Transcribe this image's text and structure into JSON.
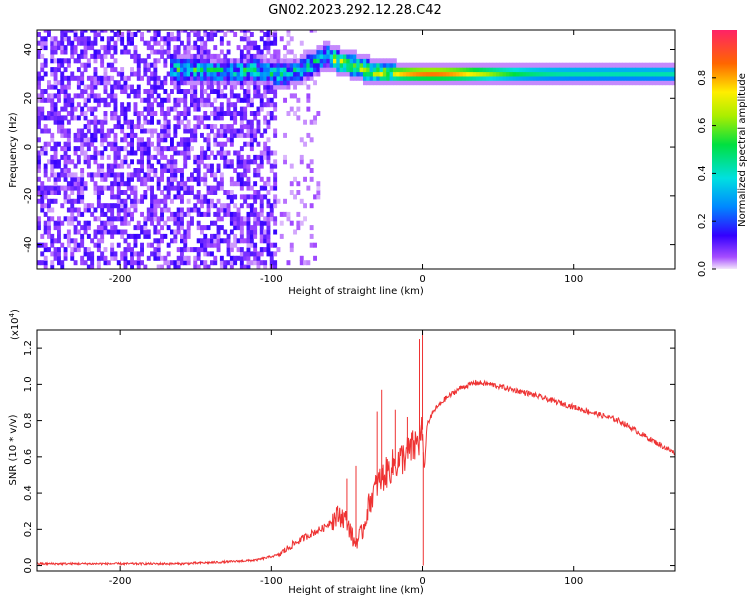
{
  "title": "GN02.2023.292.12.28.C42",
  "chart_data": [
    {
      "type": "heatmap",
      "xlabel": "Height of straight line (km)",
      "ylabel": "Frequency (Hz)",
      "xlim": [
        -255,
        167
      ],
      "ylim": [
        -50,
        48
      ],
      "xticks": [
        -200,
        -100,
        0,
        100
      ],
      "yticks": [
        40,
        20,
        0,
        -20,
        -40
      ],
      "colorbar": {
        "label": "Normalized spectral amplitude",
        "range": [
          0,
          1
        ],
        "ticks": [
          "0.0",
          "0.2",
          "0.4",
          "0.6",
          "0.8"
        ]
      },
      "ridge": [
        {
          "x": -165,
          "y": 31
        },
        {
          "x": -150,
          "y": 31
        },
        {
          "x": -130,
          "y": 30
        },
        {
          "x": -110,
          "y": 31
        },
        {
          "x": -95,
          "y": 29
        },
        {
          "x": -85,
          "y": 30
        },
        {
          "x": -75,
          "y": 33
        },
        {
          "x": -65,
          "y": 37
        },
        {
          "x": -55,
          "y": 34
        },
        {
          "x": -48,
          "y": 33
        },
        {
          "x": -40,
          "y": 31
        },
        {
          "x": -30,
          "y": 30
        },
        {
          "x": -15,
          "y": 29.5
        },
        {
          "x": 0,
          "y": 29.5
        },
        {
          "x": 100,
          "y": 29.5
        },
        {
          "x": 167,
          "y": 29.5
        }
      ]
    },
    {
      "type": "line",
      "xlabel": "Height of straight line (km)",
      "ylabel": "SNR (10 * v/v)",
      "multiplier": "(x10",
      "multiplier_exp": "4",
      "multiplier_close": ")",
      "xlim": [
        -255,
        167
      ],
      "ylim": [
        -0.03,
        1.3
      ],
      "xticks": [
        -200,
        -100,
        0,
        100
      ],
      "yticks": [
        "0.0",
        "0.2",
        "0.4",
        "0.6",
        "0.8",
        "1.0",
        "1.2"
      ],
      "color": "#ee3333",
      "series": [
        {
          "x": [
            -255,
            -200,
            -160,
            -130,
            -110,
            -95,
            -85,
            -75,
            -65,
            -60,
            -55,
            -50,
            -45,
            -40,
            -35,
            -30,
            -25,
            -20,
            -15,
            -10,
            -5,
            -2,
            0,
            1,
            3,
            8,
            15,
            25,
            35,
            45,
            55,
            70,
            90,
            110,
            130,
            150,
            167
          ],
          "values": [
            0.01,
            0.01,
            0.01,
            0.02,
            0.03,
            0.06,
            0.12,
            0.17,
            0.21,
            0.25,
            0.28,
            0.25,
            0.12,
            0.18,
            0.35,
            0.45,
            0.5,
            0.55,
            0.58,
            0.62,
            0.66,
            0.7,
            0.75,
            0.5,
            0.78,
            0.86,
            0.92,
            0.98,
            1.01,
            1.0,
            0.98,
            0.95,
            0.9,
            0.85,
            0.8,
            0.7,
            0.62
          ]
        }
      ],
      "spikes": [
        {
          "x": -50,
          "value": 0.48
        },
        {
          "x": -44,
          "value": 0.55
        },
        {
          "x": -30,
          "value": 0.85
        },
        {
          "x": -27,
          "value": 0.97
        },
        {
          "x": -18,
          "value": 0.86
        },
        {
          "x": -10,
          "value": 0.82
        },
        {
          "x": -2,
          "value": 1.25
        },
        {
          "x": 0,
          "value": 1.3
        },
        {
          "x": 0.5,
          "value": 0.0
        }
      ]
    }
  ]
}
